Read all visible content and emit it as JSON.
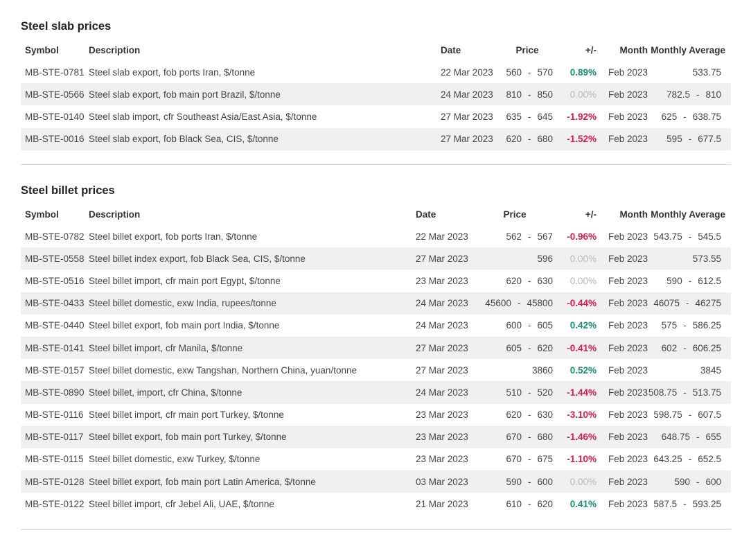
{
  "slab": {
    "title": "Steel slab prices",
    "headers": {
      "symbol": "Symbol",
      "description": "Description",
      "date": "Date",
      "price": "Price",
      "change": "+/-",
      "month": "Month",
      "monthly_average": "Monthly Average"
    },
    "rows": [
      {
        "symbol": "MB-STE-0781",
        "description": "Steel slab export, fob ports Iran, $/tonne",
        "date": "22 Mar 2023",
        "price_low": "560",
        "price_high": "570",
        "change": "0.89%",
        "change_dir": "pos",
        "month": "Feb 2023",
        "avg_low": "",
        "avg_high": "533.75"
      },
      {
        "symbol": "MB-STE-0566",
        "description": "Steel slab export, fob main port Brazil, $/tonne",
        "date": "24 Mar 2023",
        "price_low": "810",
        "price_high": "850",
        "change": "0.00%",
        "change_dir": "zero",
        "month": "Feb 2023",
        "avg_low": "782.5",
        "avg_high": "810"
      },
      {
        "symbol": "MB-STE-0140",
        "description": "Steel slab import, cfr Southeast Asia/East Asia, $/tonne",
        "date": "27 Mar 2023",
        "price_low": "635",
        "price_high": "645",
        "change": "-1.92%",
        "change_dir": "neg",
        "month": "Feb 2023",
        "avg_low": "625",
        "avg_high": "638.75"
      },
      {
        "symbol": "MB-STE-0016",
        "description": "Steel slab export, fob Black Sea, CIS, $/tonne",
        "date": "27 Mar 2023",
        "price_low": "620",
        "price_high": "680",
        "change": "-1.52%",
        "change_dir": "neg",
        "month": "Feb 2023",
        "avg_low": "595",
        "avg_high": "677.5"
      }
    ]
  },
  "billet": {
    "title": "Steel billet prices",
    "headers": {
      "symbol": "Symbol",
      "description": "Description",
      "date": "Date",
      "price": "Price",
      "change": "+/-",
      "month": "Month",
      "monthly_average": "Monthly Average"
    },
    "rows": [
      {
        "symbol": "MB-STE-0782",
        "description": "Steel billet export, fob ports Iran, $/tonne",
        "date": "22 Mar 2023",
        "price_low": "562",
        "price_high": "567",
        "change": "-0.96%",
        "change_dir": "neg",
        "month": "Feb 2023",
        "avg_low": "543.75",
        "avg_high": "545.5"
      },
      {
        "symbol": "MB-STE-0558",
        "description": "Steel billet index export, fob Black Sea, CIS, $/tonne",
        "date": "27 Mar 2023",
        "price_low": "",
        "price_high": "596",
        "change": "0.00%",
        "change_dir": "zero",
        "month": "Feb 2023",
        "avg_low": "",
        "avg_high": "573.55"
      },
      {
        "symbol": "MB-STE-0516",
        "description": "Steel billet import, cfr main port Egypt, $/tonne",
        "date": "23 Mar 2023",
        "price_low": "620",
        "price_high": "630",
        "change": "0.00%",
        "change_dir": "zero",
        "month": "Feb 2023",
        "avg_low": "590",
        "avg_high": "612.5"
      },
      {
        "symbol": "MB-STE-0433",
        "description": "Steel billet domestic, exw India, rupees/tonne",
        "date": "24 Mar 2023",
        "price_low": "45600",
        "price_high": "45800",
        "change": "-0.44%",
        "change_dir": "neg",
        "month": "Feb 2023",
        "avg_low": "46075",
        "avg_high": "46275"
      },
      {
        "symbol": "MB-STE-0440",
        "description": "Steel billet export, fob main port India, $/tonne",
        "date": "24 Mar 2023",
        "price_low": "600",
        "price_high": "605",
        "change": "0.42%",
        "change_dir": "pos",
        "month": "Feb 2023",
        "avg_low": "575",
        "avg_high": "586.25"
      },
      {
        "symbol": "MB-STE-0141",
        "description": "Steel billet import, cfr Manila, $/tonne",
        "date": "27 Mar 2023",
        "price_low": "605",
        "price_high": "620",
        "change": "-0.41%",
        "change_dir": "neg",
        "month": "Feb 2023",
        "avg_low": "602",
        "avg_high": "606.25"
      },
      {
        "symbol": "MB-STE-0157",
        "description": "Steel billet domestic, exw Tangshan, Northern China, yuan/tonne",
        "date": "27 Mar 2023",
        "price_low": "",
        "price_high": "3860",
        "change": "0.52%",
        "change_dir": "pos",
        "month": "Feb 2023",
        "avg_low": "",
        "avg_high": "3845"
      },
      {
        "symbol": "MB-STE-0890",
        "description": "Steel billet, import, cfr China, $/tonne",
        "date": "24 Mar 2023",
        "price_low": "510",
        "price_high": "520",
        "change": "-1.44%",
        "change_dir": "neg",
        "month": "Feb 2023",
        "avg_low": "508.75",
        "avg_high": "513.75"
      },
      {
        "symbol": "MB-STE-0116",
        "description": "Steel billet import, cfr main port Turkey, $/tonne",
        "date": "23 Mar 2023",
        "price_low": "620",
        "price_high": "630",
        "change": "-3.10%",
        "change_dir": "neg",
        "month": "Feb 2023",
        "avg_low": "598.75",
        "avg_high": "607.5"
      },
      {
        "symbol": "MB-STE-0117",
        "description": "Steel billet export, fob main port Turkey, $/tonne",
        "date": "23 Mar 2023",
        "price_low": "670",
        "price_high": "680",
        "change": "-1.46%",
        "change_dir": "neg",
        "month": "Feb 2023",
        "avg_low": "648.75",
        "avg_high": "655"
      },
      {
        "symbol": "MB-STE-0115",
        "description": "Steel billet domestic, exw Turkey, $/tonne",
        "date": "23 Mar 2023",
        "price_low": "670",
        "price_high": "675",
        "change": "-1.10%",
        "change_dir": "neg",
        "month": "Feb 2023",
        "avg_low": "643.25",
        "avg_high": "652.5"
      },
      {
        "symbol": "MB-STE-0128",
        "description": "Steel billet export, fob main port Latin America, $/tonne",
        "date": "03 Mar 2023",
        "price_low": "590",
        "price_high": "600",
        "change": "0.00%",
        "change_dir": "zero",
        "month": "Feb 2023",
        "avg_low": "590",
        "avg_high": "600"
      },
      {
        "symbol": "MB-STE-0122",
        "description": "Steel billet import, cfr Jebel Ali, UAE, $/tonne",
        "date": "21 Mar 2023",
        "price_low": "610",
        "price_high": "620",
        "change": "0.41%",
        "change_dir": "pos",
        "month": "Feb 2023",
        "avg_low": "587.5",
        "avg_high": "593.25"
      }
    ]
  },
  "range_separator": "-",
  "colors": {
    "positive": "#17946a",
    "negative": "#d81b4d",
    "zero": "#b6b6b6",
    "stripe": "#f0f0f0"
  }
}
